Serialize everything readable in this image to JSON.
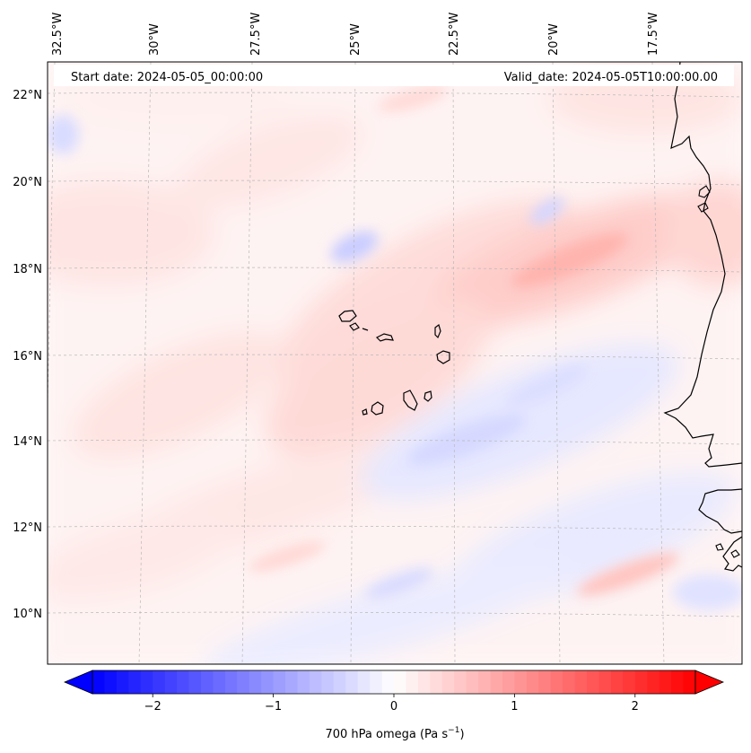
{
  "figure": {
    "start_label": "Start date: 2024-05-05_00:00:00",
    "valid_label": "Valid_date: 2024-05-05T10:00:00.00",
    "colorbar_label_main": "700 hPa omega (Pa s",
    "colorbar_label_sup": "−1",
    "colorbar_label_close": ")"
  },
  "map": {
    "lon_ticks": [
      "32.5°W",
      "30°W",
      "27.5°W",
      "25°W",
      "22.5°W",
      "20°W",
      "17.5°W"
    ],
    "lat_ticks": [
      "22°N",
      "20°N",
      "18°N",
      "16°N",
      "14°N",
      "12°N",
      "10°N"
    ],
    "gridlines": true
  },
  "colorbar": {
    "ticks": [
      "−2",
      "−1",
      "0",
      "1",
      "2"
    ],
    "vmin": -2.5,
    "vmax": 2.5,
    "colormap": "bwr",
    "low_color": "#0000ff",
    "mid_color": "#ffffff",
    "high_color": "#ff0000"
  }
}
